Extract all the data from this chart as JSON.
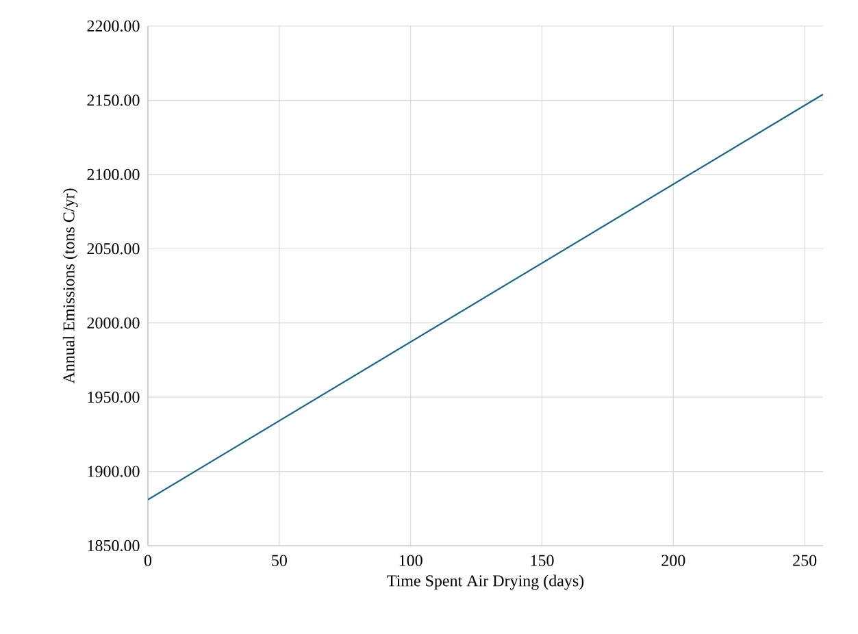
{
  "chart_data": {
    "type": "line",
    "xlabel": "Time Spent Air Drying (days)",
    "ylabel": "Annual Emissions (tons C/yr)",
    "x": [
      0,
      257
    ],
    "series": [
      {
        "color": "#1a6386",
        "values": [
          1881,
          2154
        ]
      }
    ],
    "xlim": [
      0,
      257
    ],
    "xticks": [
      0,
      50,
      100,
      150,
      200,
      250
    ],
    "ylim": [
      1850,
      2200
    ],
    "yticks": [
      {
        "value": 1850,
        "label": "1850.00"
      },
      {
        "value": 1900,
        "label": "1900.00"
      },
      {
        "value": 1950,
        "label": "1950.00"
      },
      {
        "value": 2000,
        "label": "2000.00"
      },
      {
        "value": 2050,
        "label": "2050.00"
      },
      {
        "value": 2100,
        "label": "2100.00"
      },
      {
        "value": 2150,
        "label": "2150.00"
      },
      {
        "value": 2200,
        "label": "2200.00"
      }
    ],
    "grid": true,
    "marker": "none",
    "line_style": "solid"
  }
}
